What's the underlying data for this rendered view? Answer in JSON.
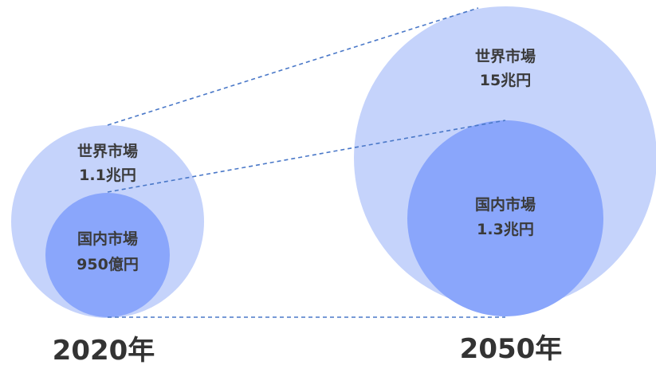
{
  "colors": {
    "world_circle": "#c5d3fb",
    "domestic_circle": "#8aa6fb",
    "connector_line": "#4a78c8",
    "text": "#3a3a3a"
  },
  "y2020": {
    "year": "2020年",
    "world": {
      "label": "世界市場",
      "value": "1.1兆円"
    },
    "domestic": {
      "label": "国内市場",
      "value": "950億円"
    }
  },
  "y2050": {
    "year": "2050年",
    "world": {
      "label": "世界市場",
      "value": "15兆円"
    },
    "domestic": {
      "label": "国内市場",
      "value": "1.3兆円"
    }
  }
}
